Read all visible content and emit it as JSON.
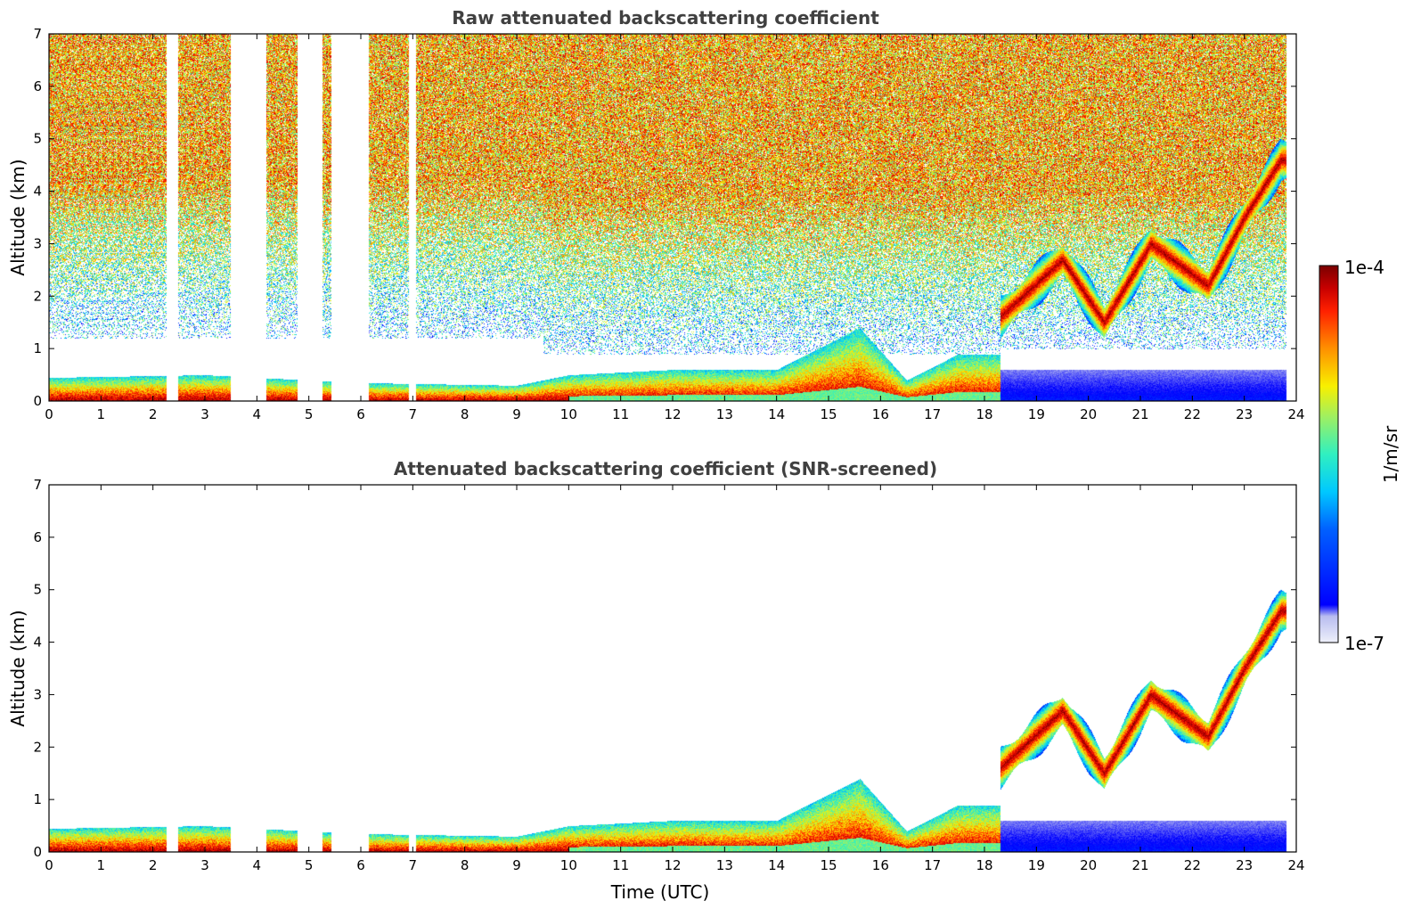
{
  "chart_data": [
    {
      "type": "heatmap",
      "title": "Raw attenuated backscattering coefficient",
      "xlabel": "",
      "ylabel": "Altitude (km)",
      "xlim": [
        0,
        24
      ],
      "ylim": [
        0,
        7
      ],
      "xticks": [
        "0",
        "1",
        "2",
        "3",
        "4",
        "5",
        "6",
        "7",
        "8",
        "9",
        "10",
        "11",
        "12",
        "13",
        "14",
        "15",
        "16",
        "17",
        "18",
        "19",
        "20",
        "21",
        "22",
        "23",
        "24"
      ],
      "yticks": [
        "0",
        "1",
        "2",
        "3",
        "4",
        "5",
        "6",
        "7"
      ],
      "data_gaps_hours": [
        [
          2.25,
          2.48
        ],
        [
          3.48,
          4.18
        ],
        [
          4.78,
          5.25
        ],
        [
          5.42,
          6.15
        ],
        [
          6.92,
          7.05
        ]
      ],
      "boundary_layer_top_km": [
        {
          "t": 0,
          "z": 0.45
        },
        {
          "t": 3,
          "z": 0.5
        },
        {
          "t": 6,
          "z": 0.35
        },
        {
          "t": 9,
          "z": 0.3
        },
        {
          "t": 10,
          "z": 0.5
        },
        {
          "t": 12,
          "z": 0.6
        },
        {
          "t": 14,
          "z": 0.6
        },
        {
          "t": 15.6,
          "z": 1.4
        },
        {
          "t": 16.5,
          "z": 0.4
        },
        {
          "t": 17.5,
          "z": 0.9
        },
        {
          "t": 18.2,
          "z": 0.9
        }
      ],
      "cloud_layer_km": [
        {
          "t": 18.3,
          "z": 1.6
        },
        {
          "t": 19.5,
          "z": 2.7
        },
        {
          "t": 20.3,
          "z": 1.5
        },
        {
          "t": 21.2,
          "z": 3.0
        },
        {
          "t": 22.3,
          "z": 2.2
        },
        {
          "t": 23.0,
          "z": 3.5
        },
        {
          "t": 23.7,
          "z": 4.6
        }
      ],
      "noise_level": "high"
    },
    {
      "type": "heatmap",
      "title": "Attenuated backscattering coefficient (SNR-screened)",
      "xlabel": "Time (UTC)",
      "ylabel": "Altitude (km)",
      "xlim": [
        0,
        24
      ],
      "ylim": [
        0,
        7
      ],
      "xticks": [
        "0",
        "1",
        "2",
        "3",
        "4",
        "5",
        "6",
        "7",
        "8",
        "9",
        "10",
        "11",
        "12",
        "13",
        "14",
        "15",
        "16",
        "17",
        "18",
        "19",
        "20",
        "21",
        "22",
        "23",
        "24"
      ],
      "yticks": [
        "0",
        "1",
        "2",
        "3",
        "4",
        "5",
        "6",
        "7"
      ],
      "data_gaps_hours": [
        [
          2.25,
          2.48
        ],
        [
          3.48,
          4.18
        ],
        [
          4.78,
          5.25
        ],
        [
          5.42,
          6.15
        ],
        [
          6.92,
          7.05
        ]
      ],
      "boundary_layer_top_km": [
        {
          "t": 0,
          "z": 0.45
        },
        {
          "t": 3,
          "z": 0.5
        },
        {
          "t": 6,
          "z": 0.35
        },
        {
          "t": 9,
          "z": 0.3
        },
        {
          "t": 10,
          "z": 0.5
        },
        {
          "t": 12,
          "z": 0.6
        },
        {
          "t": 14,
          "z": 0.6
        },
        {
          "t": 15.6,
          "z": 1.4
        },
        {
          "t": 16.5,
          "z": 0.4
        },
        {
          "t": 17.5,
          "z": 0.9
        },
        {
          "t": 18.2,
          "z": 0.9
        }
      ],
      "cloud_layer_km": [
        {
          "t": 18.3,
          "z": 1.6
        },
        {
          "t": 19.5,
          "z": 2.7
        },
        {
          "t": 20.3,
          "z": 1.5
        },
        {
          "t": 21.2,
          "z": 3.0
        },
        {
          "t": 22.3,
          "z": 2.2
        },
        {
          "t": 23.0,
          "z": 3.5
        },
        {
          "t": 23.7,
          "z": 4.6
        }
      ],
      "noise_level": "none"
    }
  ],
  "colorbar": {
    "label": "1/m/sr",
    "max_label": "1e-4",
    "min_label": "1e-7",
    "colormap": [
      "#eef0fa",
      "#b8bcf0",
      "#0000ff",
      "#0060ff",
      "#00c8ff",
      "#30f0c0",
      "#a0f060",
      "#f8f000",
      "#ff9000",
      "#ff2000",
      "#c80000",
      "#7a0000"
    ]
  }
}
